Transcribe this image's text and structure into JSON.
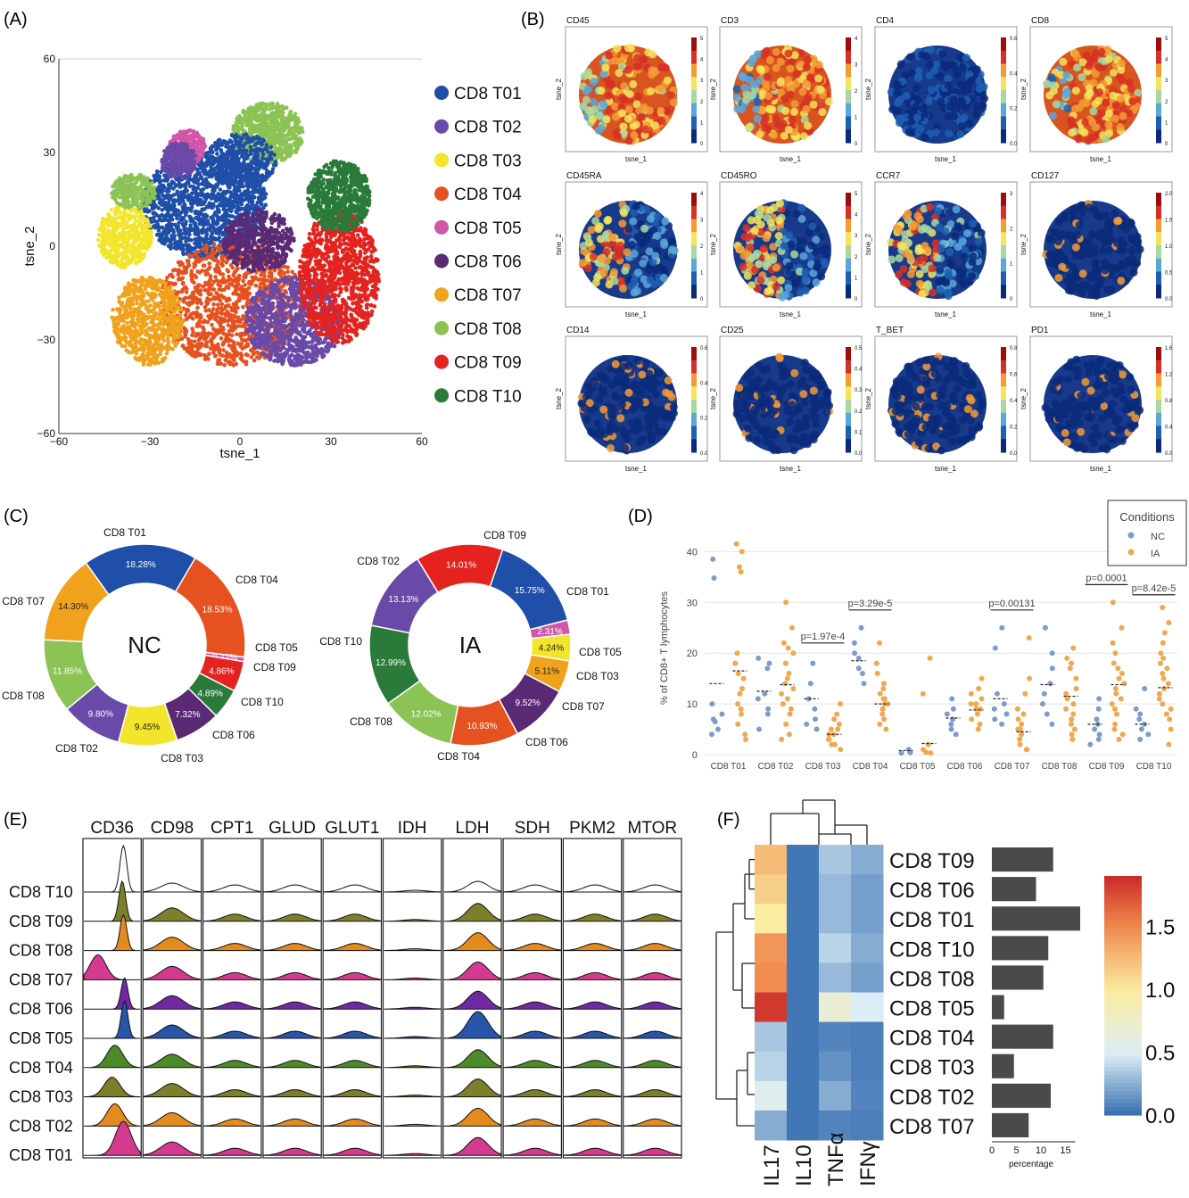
{
  "panels": {
    "A": "(A)",
    "B": "(B)",
    "C": "(C)",
    "D": "(D)",
    "E": "(E)",
    "F": "(F)"
  },
  "colors": {
    "CD8 T01": "#1f4fa8",
    "CD8 T02": "#6a4aa8",
    "CD8 T03": "#f2e52c",
    "CD8 T04": "#e5521f",
    "CD8 T05": "#d156a8",
    "CD8 T06": "#5a2a75",
    "CD8 T07": "#f0a21c",
    "CD8 T08": "#8cc355",
    "CD8 T09": "#e4231f",
    "CD8 T10": "#2a7a3a"
  },
  "tsne": {
    "xlabel": "tsne_1",
    "ylabel": "tsne_2",
    "xticks": [
      "−60",
      "−30",
      "0",
      "30",
      "60"
    ],
    "yticks": [
      "60",
      "30",
      "0",
      "−30",
      "−60"
    ],
    "legend": [
      "CD8 T01",
      "CD8 T02",
      "CD8 T03",
      "CD8 T04",
      "CD8 T05",
      "CD8 T06",
      "CD8 T07",
      "CD8 T08",
      "CD8 T09",
      "CD8 T10"
    ]
  },
  "markers": [
    {
      "name": "CD45",
      "ticks": [
        "5",
        "4",
        "3",
        "2",
        "1",
        "0"
      ],
      "pattern": "high"
    },
    {
      "name": "CD3",
      "ticks": [
        "4",
        "3",
        "2",
        "1",
        "0"
      ],
      "pattern": "high"
    },
    {
      "name": "CD4",
      "ticks": [
        "0.6",
        "0.4",
        "0.2",
        "0.0"
      ],
      "pattern": "low"
    },
    {
      "name": "CD8",
      "ticks": [
        "5",
        "4",
        "3",
        "2",
        "1",
        "0"
      ],
      "pattern": "high"
    },
    {
      "name": "CD45RA",
      "ticks": [
        "4",
        "3",
        "2",
        "1",
        "0"
      ],
      "pattern": "mid"
    },
    {
      "name": "CD45RO",
      "ticks": [
        "5",
        "4",
        "3",
        "2",
        "1",
        "0"
      ],
      "pattern": "mid"
    },
    {
      "name": "CCR7",
      "ticks": [
        "3",
        "2",
        "1",
        "0"
      ],
      "pattern": "mid"
    },
    {
      "name": "CD127",
      "ticks": [
        "2.0",
        "1.5",
        "1.0",
        "0.5",
        "0.0"
      ],
      "pattern": "spots"
    },
    {
      "name": "CD14",
      "ticks": [
        "0.6",
        "0.4",
        "0.2",
        "0.0"
      ],
      "pattern": "spots"
    },
    {
      "name": "CD25",
      "ticks": [
        "0.5",
        "0.4",
        "0.3",
        "0.2",
        "0.1",
        "0.0"
      ],
      "pattern": "spots"
    },
    {
      "name": "T_BET",
      "ticks": [
        "0.8",
        "0.6",
        "0.4",
        "0.2",
        "0.0"
      ],
      "pattern": "spots"
    },
    {
      "name": "PD1",
      "ticks": [
        "1.6",
        "1.2",
        "0.8",
        "0.4",
        "0.0"
      ],
      "pattern": "spots"
    }
  ],
  "marker_axes": {
    "x": "tsne_1",
    "y": "tsne_2"
  },
  "chart_data": [
    {
      "type": "pie",
      "title": "NC",
      "slices": [
        {
          "label": "CD8 T01",
          "value": 18.28,
          "text": "18.28%"
        },
        {
          "label": "CD8 T04",
          "value": 18.53,
          "text": "18.53%"
        },
        {
          "label": "CD8 T05",
          "value": 0.72,
          "text": "0.72%"
        },
        {
          "label": "CD8 T09",
          "value": 4.86,
          "text": "4.86%"
        },
        {
          "label": "CD8 T10",
          "value": 4.89,
          "text": "4.89%"
        },
        {
          "label": "CD8 T06",
          "value": 7.32,
          "text": "7.32%"
        },
        {
          "label": "CD8 T03",
          "value": 9.45,
          "text": "9.45%"
        },
        {
          "label": "CD8 T02",
          "value": 9.8,
          "text": "9.80%"
        },
        {
          "label": "CD8 T08",
          "value": 11.85,
          "text": "11.85%"
        },
        {
          "label": "CD8 T07",
          "value": 14.3,
          "text": "14.30%"
        }
      ]
    },
    {
      "type": "pie",
      "title": "IA",
      "slices": [
        {
          "label": "CD8 T09",
          "value": 14.01,
          "text": "14.01%"
        },
        {
          "label": "CD8 T01",
          "value": 15.75,
          "text": "15.75%"
        },
        {
          "label": "CD8 T05",
          "value": 2.31,
          "text": "2.31%"
        },
        {
          "label": "CD8 T03",
          "value": 4.24,
          "text": "4.24%"
        },
        {
          "label": "CD8 T07",
          "value": 5.11,
          "text": "5.11%"
        },
        {
          "label": "CD8 T06",
          "value": 9.52,
          "text": "9.52%"
        },
        {
          "label": "CD8 T04",
          "value": 10.93,
          "text": "10.93%"
        },
        {
          "label": "CD8 T08",
          "value": 12.02,
          "text": "12.02%"
        },
        {
          "label": "CD8 T10",
          "value": 12.99,
          "text": "12.99%"
        },
        {
          "label": "CD8 T02",
          "value": 13.13,
          "text": "13.13%"
        }
      ]
    },
    {
      "type": "scatter",
      "ylabel": "% of CD8+ T lymphocytes",
      "ylim": [
        0,
        42
      ],
      "yticks": [
        0,
        10,
        20,
        30,
        40
      ],
      "categories": [
        "CD8 T01",
        "CD8 T02",
        "CD8 T03",
        "CD8 T04",
        "CD8 T05",
        "CD8 T06",
        "CD8 T07",
        "CD8 T08",
        "CD8 T09",
        "CD8 T10"
      ],
      "legend_title": "Conditions",
      "series": [
        {
          "name": "NC",
          "color": "#7e9cc9",
          "values": [
            [
              38.5,
              34.8,
              10,
              8,
              7,
              6.5,
              5,
              4
            ],
            [
              19,
              18,
              17,
              12,
              11,
              9,
              8,
              5
            ],
            [
              18,
              14,
              11,
              9,
              7,
              6,
              5
            ],
            [
              25,
              22,
              20,
              19,
              17,
              16,
              14
            ],
            [
              1,
              0.6,
              0.5,
              0.4,
              0.3
            ],
            [
              11,
              9,
              8,
              7,
              6,
              5,
              4
            ],
            [
              25,
              21,
              12,
              10,
              9,
              8,
              7,
              6
            ],
            [
              25,
              20,
              17,
              14,
              12,
              10,
              8,
              6
            ],
            [
              11,
              9,
              7,
              6,
              5,
              4,
              3,
              2
            ],
            [
              13,
              9,
              8,
              7,
              6,
              5,
              4,
              3
            ]
          ]
        },
        {
          "name": "IA",
          "color": "#f0a850",
          "values": [
            [
              41.5,
              40,
              37,
              36,
              20,
              18,
              16,
              15,
              13,
              12,
              10,
              9,
              8,
              6,
              4,
              3
            ],
            [
              30,
              25,
              22,
              21,
              20,
              18,
              16,
              15,
              14,
              13,
              12,
              11,
              10,
              9,
              8,
              6,
              4,
              3
            ],
            [
              10,
              8,
              7,
              6,
              5,
              5,
              4,
              4,
              3,
              3,
              2,
              2,
              1
            ],
            [
              22,
              18,
              16,
              14,
              13,
              12,
              11,
              11,
              10,
              10,
              9,
              9,
              8,
              7,
              6,
              5
            ],
            [
              19,
              12,
              2,
              1,
              0.5,
              0.3
            ],
            [
              15,
              13,
              12,
              11,
              10,
              10,
              9,
              9,
              8,
              7,
              6,
              5
            ],
            [
              23,
              15,
              12,
              9,
              8,
              7,
              6,
              5,
              5,
              4,
              4,
              3,
              2,
              1,
              1
            ],
            [
              21,
              19,
              18,
              17,
              15,
              13,
              12,
              11,
              10,
              9,
              8,
              7,
              6,
              5,
              4,
              3
            ],
            [
              30,
              25,
              22,
              20,
              18,
              17,
              16,
              15,
              14,
              13,
              12,
              11,
              10,
              9,
              8,
              6,
              5,
              4,
              3
            ],
            [
              29,
              26,
              24,
              22,
              20,
              19,
              18,
              17,
              16,
              15,
              14,
              13,
              12,
              11,
              10,
              9,
              8,
              7,
              5,
              2
            ]
          ]
        }
      ],
      "means": {
        "NC": [
          14,
          12.5,
          11,
          18.5,
          0.8,
          7.2,
          11,
          13.8,
          6,
          6
        ],
        "IA": [
          16.5,
          13.8,
          4,
          10,
          2.2,
          8.8,
          4.5,
          11.5,
          13.8,
          13.2
        ]
      },
      "pvalues": [
        {
          "text": "p=1.97e-4",
          "category": "CD8 T03",
          "y": 22
        },
        {
          "text": "p=3.29e-5",
          "category": "CD8 T04",
          "y": 28.5
        },
        {
          "text": "p=0.00131",
          "category": "CD8 T07",
          "y": 28.5
        },
        {
          "text": "p=0.0001",
          "category": "CD8 T09",
          "y": 33.5
        },
        {
          "text": "p=8.42e-5",
          "category": "CD8 T10",
          "y": 31.5
        }
      ]
    },
    {
      "type": "heatmap",
      "columns": [
        "IL17",
        "IL10",
        "TNFα",
        "IFNγ"
      ],
      "rows": [
        "CD8 T09",
        "CD8 T06",
        "CD8 T01",
        "CD8 T10",
        "CD8 T08",
        "CD8 T05",
        "CD8 T04",
        "CD8 T03",
        "CD8 T02",
        "CD8 T07"
      ],
      "values": [
        [
          1.25,
          0.05,
          0.35,
          0.25
        ],
        [
          1.15,
          0.05,
          0.3,
          0.2
        ],
        [
          1.0,
          0.05,
          0.3,
          0.2
        ],
        [
          1.45,
          0.05,
          0.4,
          0.25
        ],
        [
          1.5,
          0.05,
          0.3,
          0.2
        ],
        [
          1.85,
          0.05,
          0.7,
          0.5
        ],
        [
          0.35,
          0.05,
          0.1,
          0.08
        ],
        [
          0.4,
          0.05,
          0.15,
          0.08
        ],
        [
          0.55,
          0.05,
          0.25,
          0.1
        ],
        [
          0.25,
          0.05,
          0.1,
          0.08
        ]
      ],
      "colorbar_ticks": [
        {
          "v": 1.5,
          "t": "1.5"
        },
        {
          "v": 1.0,
          "t": "1.0"
        },
        {
          "v": 0.5,
          "t": "0.5"
        },
        {
          "v": 0.0,
          "t": "0.0"
        }
      ],
      "bar_values": [
        12.5,
        9,
        18,
        11.5,
        10.5,
        2.5,
        12.5,
        4.5,
        12,
        7.5
      ],
      "bar_xticks": [
        {
          "v": 0,
          "t": "0"
        },
        {
          "v": 5,
          "t": "5"
        },
        {
          "v": 10,
          "t": "10"
        },
        {
          "v": 15,
          "t": "15"
        }
      ],
      "bar_xlabel": "percentage"
    }
  ],
  "ridge": {
    "markers": [
      "CD36",
      "CD98",
      "CPT1",
      "GLUD",
      "GLUT1",
      "IDH",
      "LDH",
      "SDH",
      "PKM2",
      "MTOR"
    ],
    "rows": [
      "CD8 T10",
      "CD8 T09",
      "CD8 T08",
      "CD8 T07",
      "CD8 T06",
      "CD8 T05",
      "CD8 T04",
      "CD8 T03",
      "CD8 T02",
      "CD8 T01"
    ],
    "row_colors": [
      "#ffffff",
      "#7d7f2a",
      "#e38b1f",
      "#d43b8e",
      "#6f2aa3",
      "#2855a8",
      "#4f8a2a",
      "#7d7f2a",
      "#e38b1f",
      "#d43b8e"
    ]
  }
}
